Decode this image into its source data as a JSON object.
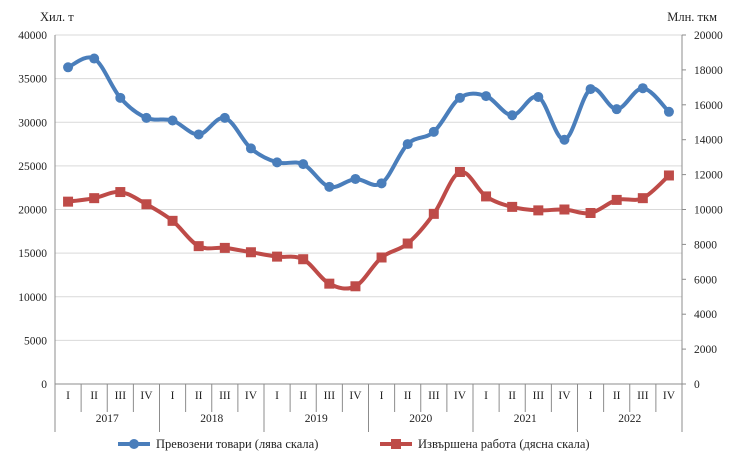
{
  "chart_data": {
    "type": "line",
    "left_axis_unit": "Хил. т",
    "right_axis_unit": "Млн. ткм",
    "left_ylim": [
      0,
      40000
    ],
    "left_yticks": [
      "0",
      "5000",
      "10000",
      "15000",
      "20000",
      "25000",
      "30000",
      "35000",
      "40000"
    ],
    "right_ylim": [
      0,
      20000
    ],
    "right_yticks": [
      "0",
      "2000",
      "4000",
      "6000",
      "8000",
      "10000",
      "12000",
      "14000",
      "16000",
      "18000",
      "20000"
    ],
    "quarters": [
      "I",
      "II",
      "III",
      "IV",
      "I",
      "II",
      "III",
      "IV",
      "I",
      "II",
      "III",
      "IV",
      "I",
      "II",
      "III",
      "IV",
      "I",
      "II",
      "III",
      "IV",
      "I",
      "II",
      "III",
      "IV"
    ],
    "years": [
      "2017",
      "2018",
      "2019",
      "2020",
      "2021",
      "2022"
    ],
    "grid": true,
    "legend_position": "bottom",
    "series": [
      {
        "name": "Превозени товари (лява скала)",
        "axis": "left",
        "color": "#4A7EBB",
        "marker": "circle",
        "values": [
          36300,
          37300,
          32800,
          30500,
          30200,
          28600,
          30500,
          27000,
          25400,
          25200,
          22600,
          23500,
          23000,
          27500,
          28900,
          32800,
          33000,
          30800,
          32900,
          28000,
          33800,
          31500,
          33900,
          31200
        ]
      },
      {
        "name": "Извършена работа (дясна скала)",
        "axis": "right",
        "color": "#BE4B48",
        "marker": "square",
        "values": [
          10450,
          10650,
          11000,
          10300,
          9350,
          7900,
          7800,
          7550,
          7300,
          7150,
          5750,
          5600,
          7250,
          8050,
          9750,
          12150,
          10750,
          10150,
          9950,
          10000,
          9800,
          10550,
          10650,
          11950
        ]
      }
    ]
  }
}
